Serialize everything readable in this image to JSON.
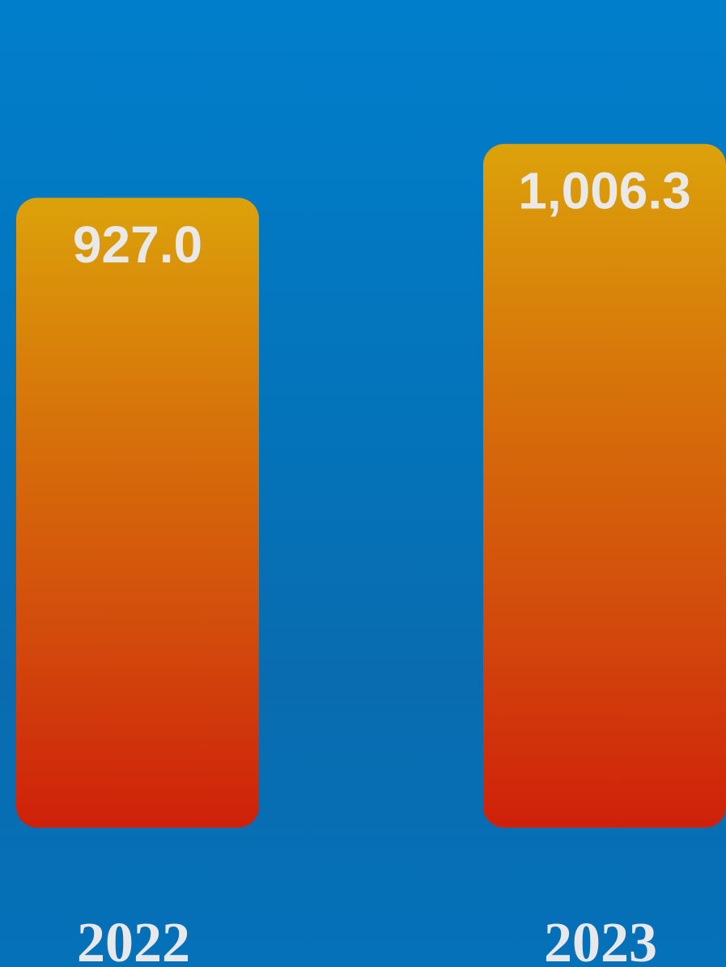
{
  "chart_data": {
    "type": "bar",
    "categories": [
      "2022",
      "2023"
    ],
    "values": [
      927.0,
      1006.3
    ],
    "value_labels": [
      "927.0",
      "1,006.3"
    ],
    "title": "",
    "xlabel": "",
    "ylabel": "",
    "grid": false,
    "legend": "none",
    "colors": {
      "background_top": "#017ecb",
      "background_bottom": "#0471b8",
      "bar_top": "#dca20a",
      "bar_bottom": "#cf200a",
      "label_text": "#e9e9ea"
    }
  }
}
